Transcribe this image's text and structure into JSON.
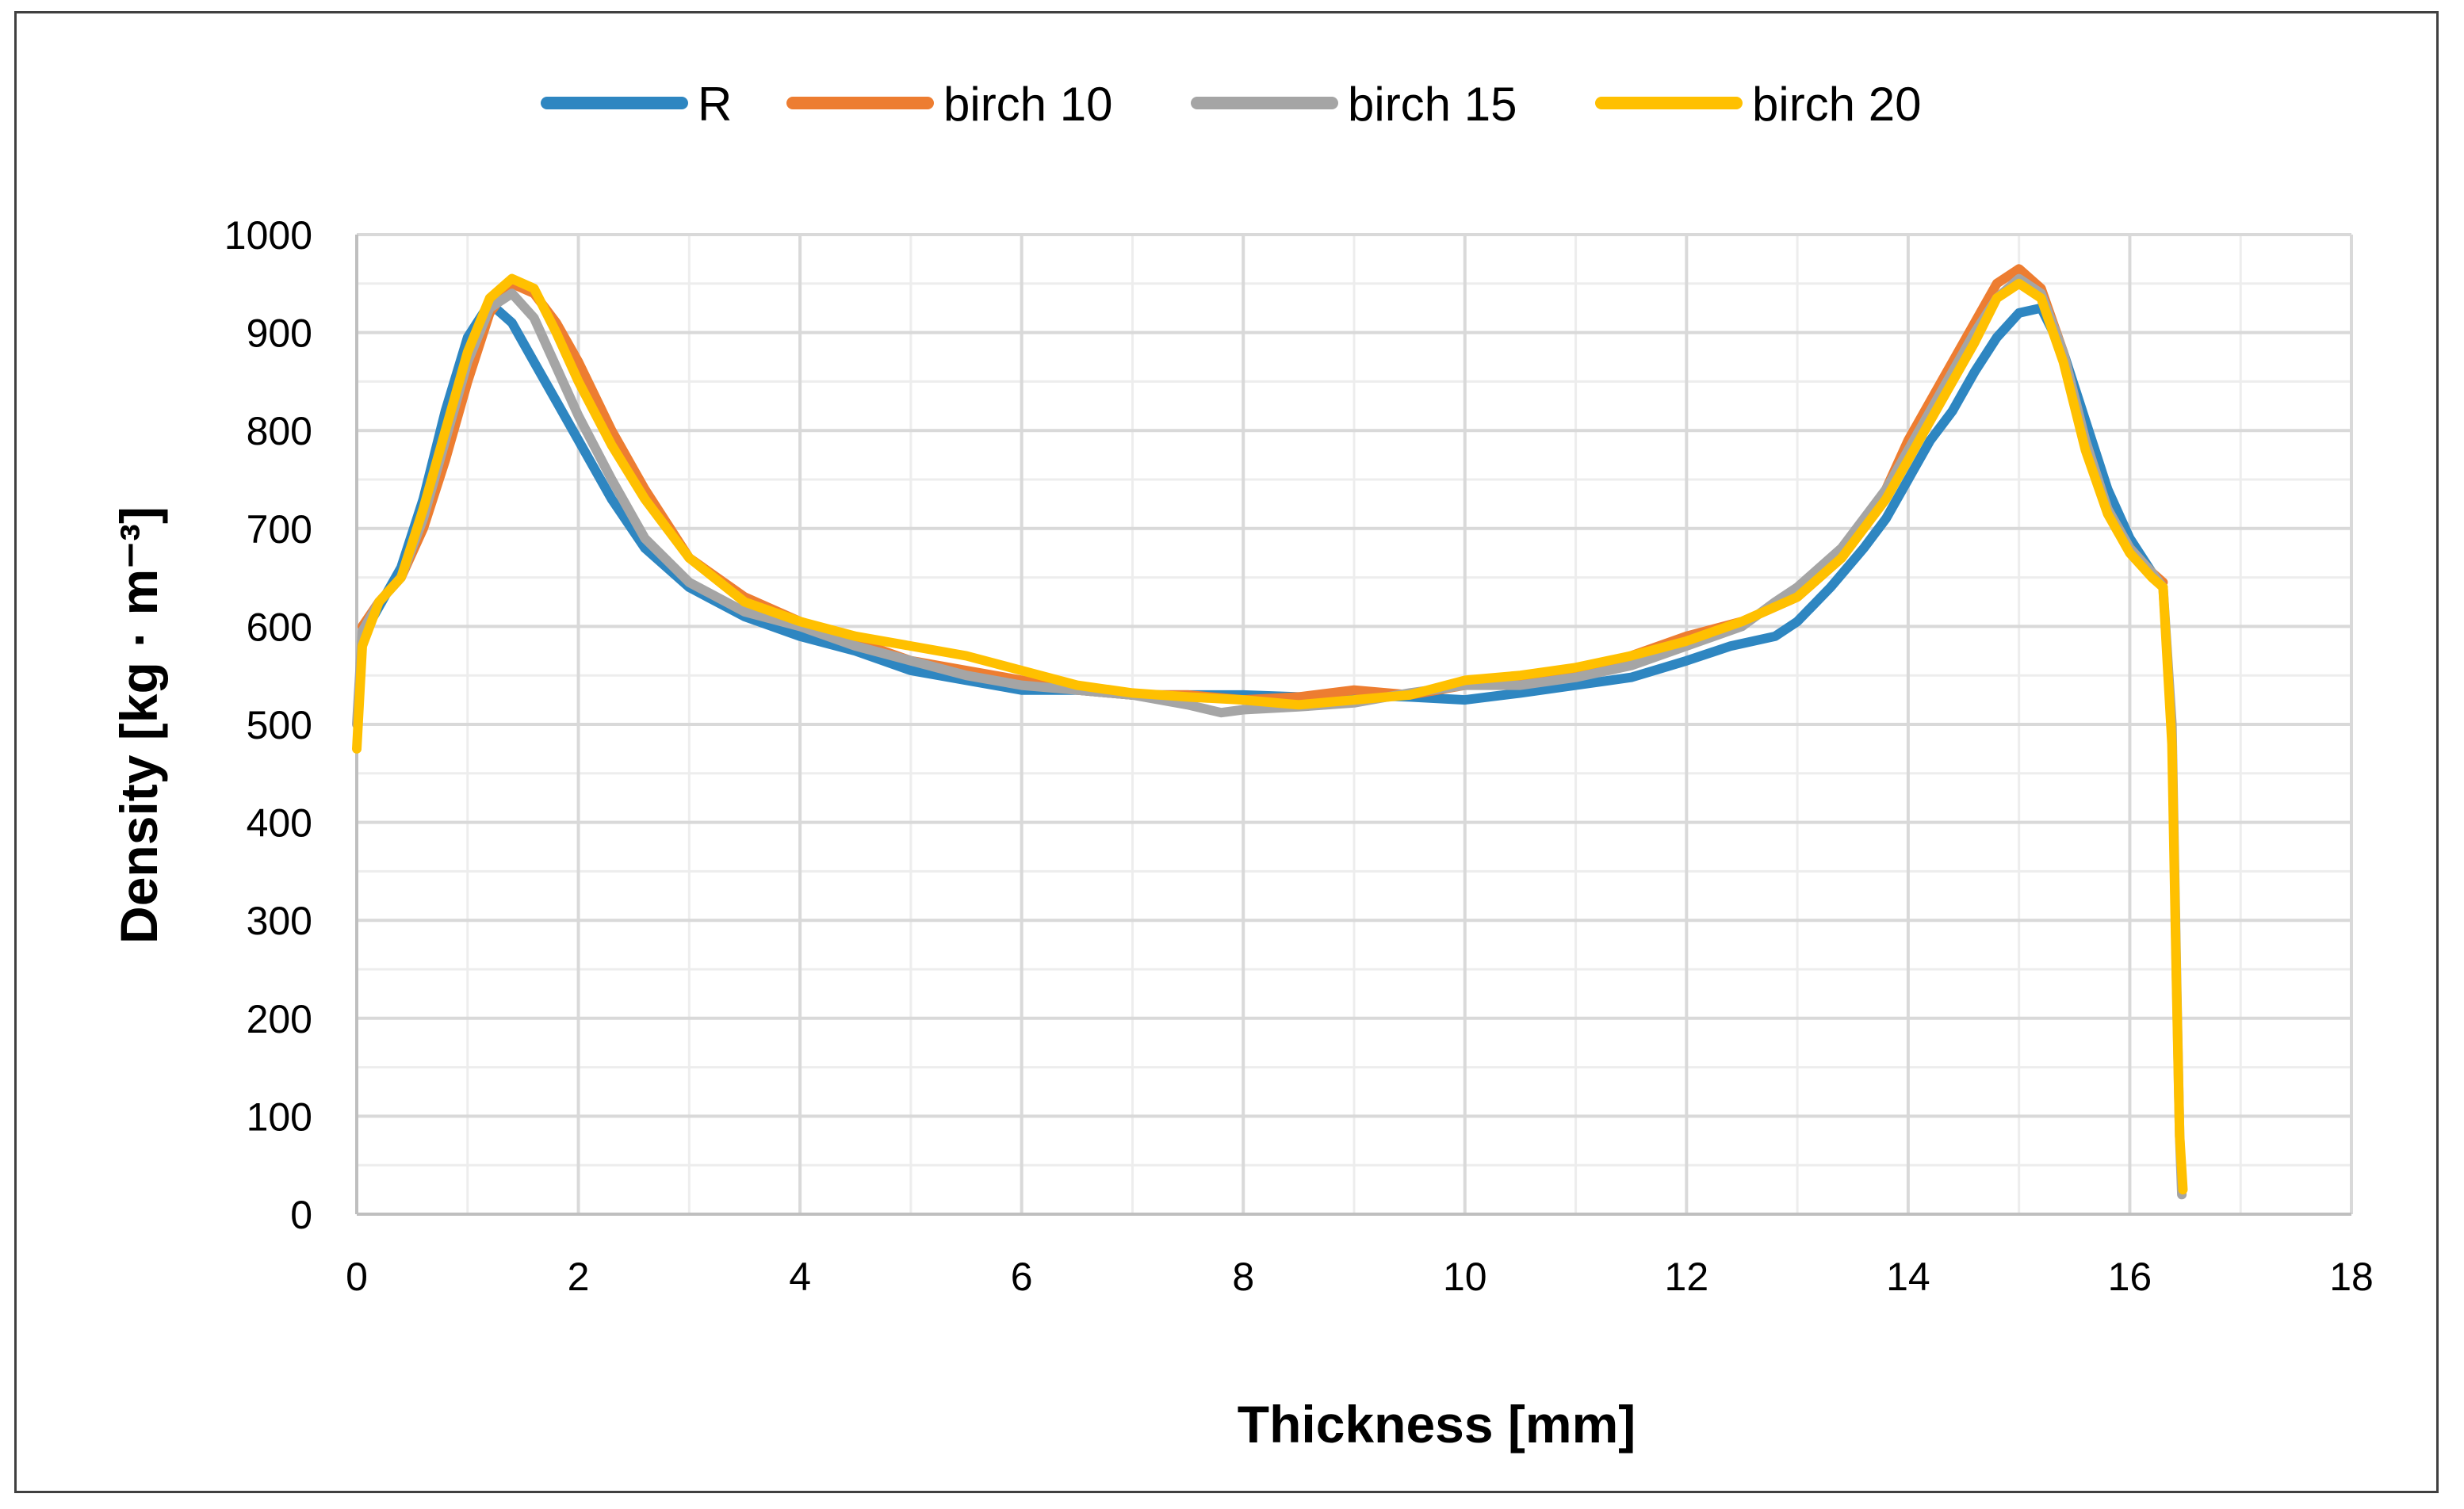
{
  "chart_data": {
    "type": "line",
    "title": "",
    "xlabel": "Thickness [mm]",
    "ylabel": "Density [kg · m⁻³]",
    "xlim": [
      0,
      18
    ],
    "ylim": [
      0,
      1000
    ],
    "x_ticks": [
      0,
      2,
      4,
      6,
      8,
      10,
      12,
      14,
      16,
      18
    ],
    "y_ticks": [
      0,
      100,
      200,
      300,
      400,
      500,
      600,
      700,
      800,
      900,
      1000
    ],
    "x_tick_labels": [
      "0",
      "2",
      "4",
      "6",
      "8",
      "10",
      "12",
      "14",
      "16",
      "18"
    ],
    "y_tick_labels": [
      "0",
      "100",
      "200",
      "300",
      "400",
      "500",
      "600",
      "700",
      "800",
      "900",
      "1000"
    ],
    "grid": true,
    "legend_position": "top",
    "series": [
      {
        "name": "R",
        "color": "#2E86C1",
        "points": [
          [
            0.05,
            590
          ],
          [
            0.2,
            620
          ],
          [
            0.4,
            660
          ],
          [
            0.6,
            730
          ],
          [
            0.8,
            820
          ],
          [
            1.0,
            895
          ],
          [
            1.2,
            930
          ],
          [
            1.4,
            910
          ],
          [
            1.6,
            870
          ],
          [
            1.8,
            830
          ],
          [
            2.0,
            790
          ],
          [
            2.3,
            730
          ],
          [
            2.6,
            680
          ],
          [
            3.0,
            640
          ],
          [
            3.5,
            610
          ],
          [
            4.0,
            590
          ],
          [
            4.5,
            575
          ],
          [
            5.0,
            555
          ],
          [
            5.5,
            545
          ],
          [
            6.0,
            535
          ],
          [
            6.5,
            535
          ],
          [
            7.0,
            530
          ],
          [
            7.5,
            530
          ],
          [
            8.0,
            530
          ],
          [
            8.5,
            528
          ],
          [
            9.0,
            530
          ],
          [
            9.5,
            528
          ],
          [
            10.0,
            525
          ],
          [
            10.5,
            532
          ],
          [
            11.0,
            540
          ],
          [
            11.5,
            548
          ],
          [
            12.0,
            565
          ],
          [
            12.4,
            580
          ],
          [
            12.8,
            590
          ],
          [
            13.0,
            605
          ],
          [
            13.3,
            640
          ],
          [
            13.6,
            680
          ],
          [
            13.8,
            710
          ],
          [
            14.0,
            750
          ],
          [
            14.2,
            790
          ],
          [
            14.4,
            820
          ],
          [
            14.6,
            860
          ],
          [
            14.8,
            895
          ],
          [
            15.0,
            920
          ],
          [
            15.2,
            925
          ],
          [
            15.4,
            880
          ],
          [
            15.6,
            810
          ],
          [
            15.8,
            740
          ],
          [
            16.0,
            690
          ],
          [
            16.2,
            655
          ],
          [
            16.3,
            640
          ]
        ]
      },
      {
        "name": "birch 10",
        "color": "#ED7D31",
        "points": [
          [
            0.05,
            600
          ],
          [
            0.2,
            625
          ],
          [
            0.4,
            650
          ],
          [
            0.6,
            700
          ],
          [
            0.8,
            770
          ],
          [
            1.0,
            850
          ],
          [
            1.2,
            920
          ],
          [
            1.4,
            950
          ],
          [
            1.6,
            940
          ],
          [
            1.8,
            910
          ],
          [
            2.0,
            870
          ],
          [
            2.3,
            800
          ],
          [
            2.6,
            740
          ],
          [
            3.0,
            670
          ],
          [
            3.5,
            630
          ],
          [
            4.0,
            605
          ],
          [
            4.5,
            585
          ],
          [
            5.0,
            565
          ],
          [
            5.5,
            555
          ],
          [
            6.0,
            545
          ],
          [
            6.5,
            535
          ],
          [
            7.0,
            530
          ],
          [
            7.5,
            530
          ],
          [
            8.0,
            525
          ],
          [
            8.5,
            528
          ],
          [
            9.0,
            535
          ],
          [
            9.5,
            530
          ],
          [
            10.0,
            540
          ],
          [
            10.5,
            548
          ],
          [
            11.0,
            555
          ],
          [
            11.5,
            570
          ],
          [
            12.0,
            590
          ],
          [
            12.5,
            605
          ],
          [
            13.0,
            630
          ],
          [
            13.4,
            670
          ],
          [
            13.8,
            740
          ],
          [
            14.0,
            790
          ],
          [
            14.3,
            850
          ],
          [
            14.6,
            910
          ],
          [
            14.8,
            950
          ],
          [
            15.0,
            965
          ],
          [
            15.2,
            945
          ],
          [
            15.4,
            880
          ],
          [
            15.6,
            790
          ],
          [
            15.8,
            720
          ],
          [
            16.0,
            680
          ],
          [
            16.2,
            655
          ],
          [
            16.3,
            645
          ]
        ]
      },
      {
        "name": "birch 15",
        "color": "#A5A5A5",
        "points": [
          [
            0.0,
            500
          ],
          [
            0.05,
            595
          ],
          [
            0.2,
            625
          ],
          [
            0.4,
            650
          ],
          [
            0.6,
            710
          ],
          [
            0.8,
            790
          ],
          [
            1.0,
            870
          ],
          [
            1.2,
            925
          ],
          [
            1.4,
            940
          ],
          [
            1.6,
            915
          ],
          [
            1.8,
            865
          ],
          [
            2.0,
            815
          ],
          [
            2.3,
            750
          ],
          [
            2.6,
            690
          ],
          [
            3.0,
            645
          ],
          [
            3.5,
            615
          ],
          [
            4.0,
            600
          ],
          [
            4.5,
            580
          ],
          [
            5.0,
            565
          ],
          [
            5.5,
            550
          ],
          [
            6.0,
            540
          ],
          [
            6.5,
            535
          ],
          [
            7.0,
            530
          ],
          [
            7.5,
            520
          ],
          [
            7.8,
            512
          ],
          [
            8.0,
            515
          ],
          [
            8.5,
            518
          ],
          [
            9.0,
            522
          ],
          [
            9.5,
            532
          ],
          [
            10.0,
            540
          ],
          [
            10.5,
            540
          ],
          [
            11.0,
            548
          ],
          [
            11.5,
            560
          ],
          [
            12.0,
            580
          ],
          [
            12.5,
            600
          ],
          [
            12.8,
            625
          ],
          [
            13.0,
            640
          ],
          [
            13.4,
            680
          ],
          [
            13.8,
            740
          ],
          [
            14.0,
            780
          ],
          [
            14.3,
            840
          ],
          [
            14.6,
            900
          ],
          [
            14.8,
            935
          ],
          [
            15.0,
            955
          ],
          [
            15.2,
            940
          ],
          [
            15.4,
            880
          ],
          [
            15.6,
            790
          ],
          [
            15.8,
            720
          ],
          [
            16.0,
            680
          ],
          [
            16.2,
            655
          ],
          [
            16.3,
            640
          ],
          [
            16.38,
            500
          ],
          [
            16.42,
            250
          ],
          [
            16.45,
            80
          ],
          [
            16.47,
            20
          ]
        ]
      },
      {
        "name": "birch 20",
        "color": "#FFC000",
        "points": [
          [
            0.0,
            475
          ],
          [
            0.05,
            580
          ],
          [
            0.2,
            625
          ],
          [
            0.4,
            650
          ],
          [
            0.6,
            720
          ],
          [
            0.8,
            800
          ],
          [
            1.0,
            880
          ],
          [
            1.2,
            935
          ],
          [
            1.4,
            955
          ],
          [
            1.6,
            945
          ],
          [
            1.8,
            900
          ],
          [
            2.0,
            850
          ],
          [
            2.3,
            785
          ],
          [
            2.6,
            730
          ],
          [
            3.0,
            670
          ],
          [
            3.5,
            625
          ],
          [
            4.0,
            605
          ],
          [
            4.5,
            590
          ],
          [
            5.0,
            580
          ],
          [
            5.5,
            570
          ],
          [
            6.0,
            555
          ],
          [
            6.5,
            540
          ],
          [
            7.0,
            532
          ],
          [
            7.5,
            528
          ],
          [
            8.0,
            525
          ],
          [
            8.5,
            520
          ],
          [
            9.0,
            525
          ],
          [
            9.5,
            530
          ],
          [
            10.0,
            545
          ],
          [
            10.5,
            550
          ],
          [
            11.0,
            558
          ],
          [
            11.5,
            570
          ],
          [
            12.0,
            585
          ],
          [
            12.5,
            605
          ],
          [
            13.0,
            630
          ],
          [
            13.4,
            670
          ],
          [
            13.8,
            730
          ],
          [
            14.0,
            770
          ],
          [
            14.3,
            830
          ],
          [
            14.6,
            890
          ],
          [
            14.8,
            935
          ],
          [
            15.0,
            950
          ],
          [
            15.2,
            935
          ],
          [
            15.4,
            870
          ],
          [
            15.6,
            780
          ],
          [
            15.8,
            715
          ],
          [
            16.0,
            675
          ],
          [
            16.2,
            650
          ],
          [
            16.3,
            640
          ],
          [
            16.38,
            480
          ],
          [
            16.42,
            240
          ],
          [
            16.45,
            80
          ],
          [
            16.48,
            25
          ]
        ]
      }
    ]
  }
}
